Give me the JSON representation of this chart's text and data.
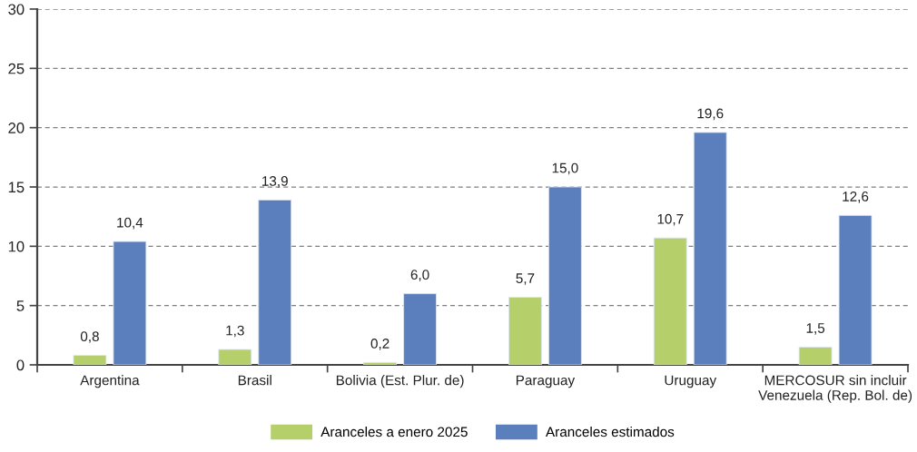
{
  "chart_data": {
    "type": "bar",
    "categories": [
      "Argentina",
      "Brasil",
      "Bolivia (Est. Plur. de)",
      "Paraguay",
      "Uruguay",
      "MERCOSUR sin incluir\nVenezuela (Rep. Bol. de)"
    ],
    "series": [
      {
        "name": "Aranceles a enero 2025",
        "color": "#b5cf6b",
        "values": [
          0.8,
          1.3,
          0.2,
          5.7,
          10.7,
          1.5
        ],
        "value_labels": [
          "0,8",
          "1,3",
          "0,2",
          "5,7",
          "10,7",
          "1,5"
        ]
      },
      {
        "name": "Aranceles estimados",
        "color": "#5b7fbd",
        "values": [
          10.4,
          13.9,
          6.0,
          15.0,
          19.6,
          12.6
        ],
        "value_labels": [
          "10,4",
          "13,9",
          "6,0",
          "15,0",
          "19,6",
          "12,6"
        ]
      }
    ],
    "ylim": [
      0,
      30
    ],
    "yticks": [
      0,
      5,
      10,
      15,
      20,
      25,
      30
    ],
    "grid": "y",
    "legend": "bottom"
  }
}
